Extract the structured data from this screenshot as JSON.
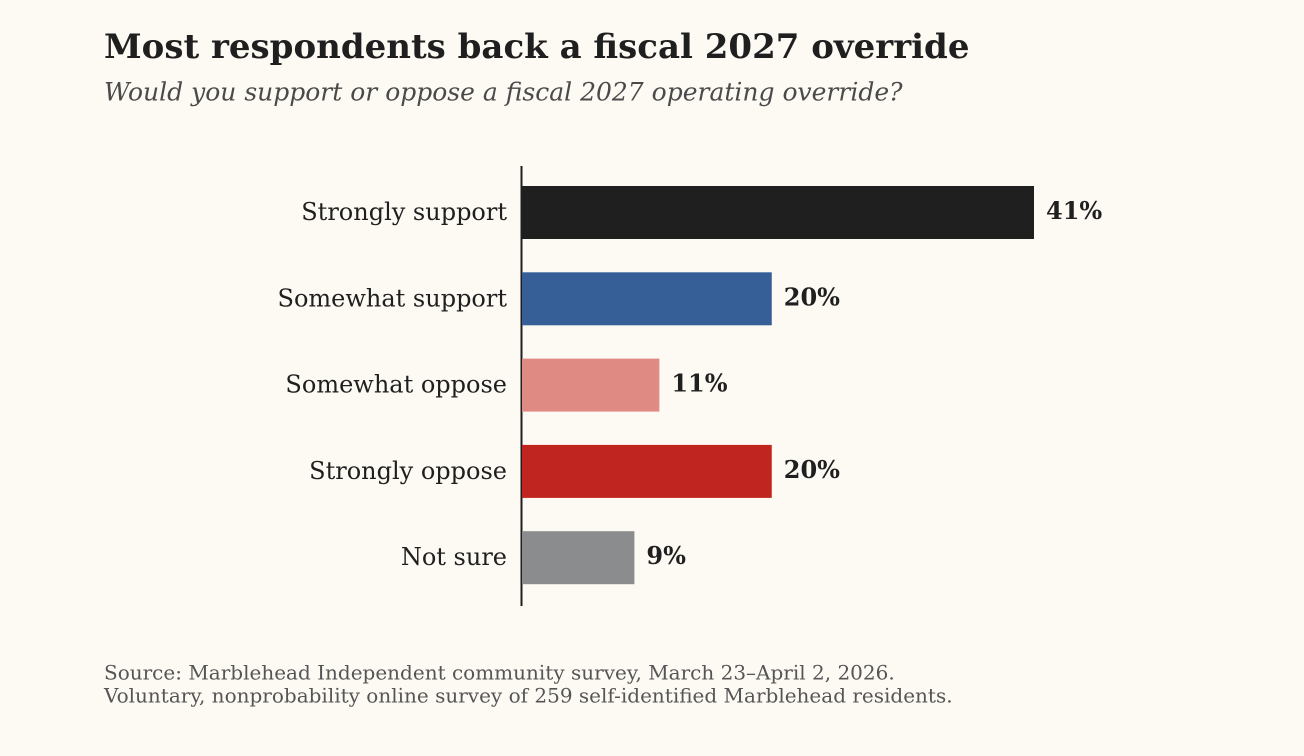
{
  "chart_data": {
    "type": "hbar",
    "title": "Most respondents back a fiscal 2027 override",
    "subtitle": "Would you support or oppose a fiscal 2027 operating override?",
    "categories": [
      "Strongly support",
      "Somewhat support",
      "Somewhat oppose",
      "Strongly oppose",
      "Not sure"
    ],
    "values": [
      41,
      20,
      11,
      20,
      9
    ],
    "value_labels": [
      "41%",
      "20%",
      "11%",
      "20%",
      "9%"
    ],
    "colors": [
      "#1f1f20",
      "#365f98",
      "#e08a84",
      "#c0251f",
      "#8a8c8d"
    ],
    "notes": [
      "Source: Marblehead Independent community survey, March 23–April 2, 2026.",
      "Voluntary, nonprobability online survey of 259 self-identified Marblehead residents."
    ]
  }
}
